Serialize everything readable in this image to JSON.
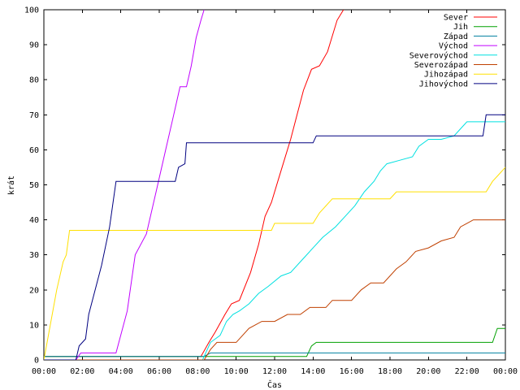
{
  "chart_data": {
    "type": "line",
    "xlabel": "Čas",
    "ylabel": "krát",
    "ylim": [
      0,
      100
    ],
    "xlim": [
      "00:00",
      "24:00"
    ],
    "grid": false,
    "legend_placement": "top-right",
    "x_ticks": [
      "00:00",
      "02:00",
      "04:00",
      "06:00",
      "08:00",
      "10:00",
      "12:00",
      "14:00",
      "16:00",
      "18:00",
      "20:00",
      "22:00",
      "00:00"
    ],
    "y_ticks": [
      "0",
      "10",
      "20",
      "30",
      "40",
      "50",
      "60",
      "70",
      "80",
      "90",
      "100"
    ],
    "series": [
      {
        "name": "Sever",
        "color": "#ff0000",
        "points": [
          [
            "00:00",
            1
          ],
          [
            "08:10",
            1
          ],
          [
            "08:35",
            5
          ],
          [
            "08:55",
            8
          ],
          [
            "09:25",
            13
          ],
          [
            "09:45",
            16
          ],
          [
            "10:10",
            17
          ],
          [
            "10:45",
            25
          ],
          [
            "11:10",
            33
          ],
          [
            "11:30",
            41
          ],
          [
            "11:50",
            45
          ],
          [
            "12:10",
            51
          ],
          [
            "12:30",
            57
          ],
          [
            "12:50",
            63
          ],
          [
            "13:10",
            70
          ],
          [
            "13:30",
            77
          ],
          [
            "13:55",
            83
          ],
          [
            "14:20",
            84
          ],
          [
            "14:45",
            88
          ],
          [
            "15:15",
            97
          ],
          [
            "15:35",
            100
          ]
        ]
      },
      {
        "name": "Jih",
        "color": "#00a000",
        "points": [
          [
            "00:00",
            1
          ],
          [
            "13:40",
            1
          ],
          [
            "13:55",
            4
          ],
          [
            "14:10",
            5
          ],
          [
            "23:20",
            5
          ],
          [
            "23:35",
            9
          ],
          [
            "24:00",
            9
          ]
        ]
      },
      {
        "name": "Západ",
        "color": "#0080a0",
        "points": [
          [
            "00:00",
            1
          ],
          [
            "08:20",
            1
          ],
          [
            "08:40",
            2
          ],
          [
            "24:00",
            2
          ]
        ]
      },
      {
        "name": "Východ",
        "color": "#c000ff",
        "points": [
          [
            "00:00",
            0
          ],
          [
            "01:40",
            0
          ],
          [
            "01:55",
            2
          ],
          [
            "03:45",
            2
          ],
          [
            "04:20",
            14
          ],
          [
            "04:45",
            30
          ],
          [
            "05:20",
            36
          ],
          [
            "05:50",
            48
          ],
          [
            "06:20",
            60
          ],
          [
            "06:45",
            70
          ],
          [
            "07:05",
            78
          ],
          [
            "07:25",
            78
          ],
          [
            "07:40",
            84
          ],
          [
            "07:55",
            92
          ],
          [
            "08:10",
            97
          ],
          [
            "08:20",
            100
          ]
        ]
      },
      {
        "name": "Severovýchod",
        "color": "#00e0e0",
        "points": [
          [
            "00:00",
            0
          ],
          [
            "08:15",
            0
          ],
          [
            "08:40",
            5
          ],
          [
            "09:10",
            7
          ],
          [
            "09:30",
            11
          ],
          [
            "09:50",
            13
          ],
          [
            "10:10",
            14
          ],
          [
            "10:40",
            16
          ],
          [
            "11:10",
            19
          ],
          [
            "11:40",
            21
          ],
          [
            "12:20",
            24
          ],
          [
            "12:50",
            25
          ],
          [
            "13:30",
            29
          ],
          [
            "14:00",
            32
          ],
          [
            "14:30",
            35
          ],
          [
            "15:10",
            38
          ],
          [
            "15:40",
            41
          ],
          [
            "16:10",
            44
          ],
          [
            "16:40",
            48
          ],
          [
            "17:10",
            51
          ],
          [
            "17:30",
            54
          ],
          [
            "17:50",
            56
          ],
          [
            "18:30",
            57
          ],
          [
            "19:10",
            58
          ],
          [
            "19:30",
            61
          ],
          [
            "20:00",
            63
          ],
          [
            "20:40",
            63
          ],
          [
            "21:20",
            64
          ],
          [
            "21:40",
            66
          ],
          [
            "22:00",
            68
          ],
          [
            "24:00",
            68
          ]
        ]
      },
      {
        "name": "Severozápad",
        "color": "#c04000",
        "points": [
          [
            "00:00",
            0
          ],
          [
            "08:20",
            0
          ],
          [
            "08:40",
            3
          ],
          [
            "09:00",
            5
          ],
          [
            "10:00",
            5
          ],
          [
            "10:40",
            9
          ],
          [
            "11:20",
            11
          ],
          [
            "12:00",
            11
          ],
          [
            "12:40",
            13
          ],
          [
            "13:20",
            13
          ],
          [
            "13:50",
            15
          ],
          [
            "14:40",
            15
          ],
          [
            "15:00",
            17
          ],
          [
            "16:00",
            17
          ],
          [
            "16:30",
            20
          ],
          [
            "17:00",
            22
          ],
          [
            "17:40",
            22
          ],
          [
            "18:20",
            26
          ],
          [
            "18:50",
            28
          ],
          [
            "19:20",
            31
          ],
          [
            "20:00",
            32
          ],
          [
            "20:40",
            34
          ],
          [
            "21:20",
            35
          ],
          [
            "21:40",
            38
          ],
          [
            "22:00",
            39
          ],
          [
            "22:20",
            40
          ],
          [
            "24:00",
            40
          ]
        ]
      },
      {
        "name": "Jihozápad",
        "color": "#ffe000",
        "points": [
          [
            "00:00",
            0
          ],
          [
            "00:40",
            20
          ],
          [
            "01:00",
            28
          ],
          [
            "01:10",
            30
          ],
          [
            "01:20",
            37
          ],
          [
            "11:50",
            37
          ],
          [
            "12:00",
            39
          ],
          [
            "14:00",
            39
          ],
          [
            "14:20",
            42
          ],
          [
            "14:40",
            44
          ],
          [
            "15:00",
            46
          ],
          [
            "18:00",
            46
          ],
          [
            "18:20",
            48
          ],
          [
            "23:00",
            48
          ],
          [
            "23:20",
            51
          ],
          [
            "23:40",
            53
          ],
          [
            "24:00",
            55
          ]
        ]
      },
      {
        "name": "Jihovýchod",
        "color": "#000080",
        "points": [
          [
            "00:00",
            0
          ],
          [
            "01:40",
            0
          ],
          [
            "01:50",
            4
          ],
          [
            "02:10",
            6
          ],
          [
            "02:20",
            13
          ],
          [
            "03:00",
            27
          ],
          [
            "03:25",
            38
          ],
          [
            "03:45",
            51
          ],
          [
            "06:50",
            51
          ],
          [
            "07:00",
            55
          ],
          [
            "07:20",
            56
          ],
          [
            "07:25",
            62
          ],
          [
            "14:00",
            62
          ],
          [
            "14:10",
            64
          ],
          [
            "22:50",
            64
          ],
          [
            "23:00",
            70
          ],
          [
            "24:00",
            70
          ]
        ]
      }
    ]
  }
}
